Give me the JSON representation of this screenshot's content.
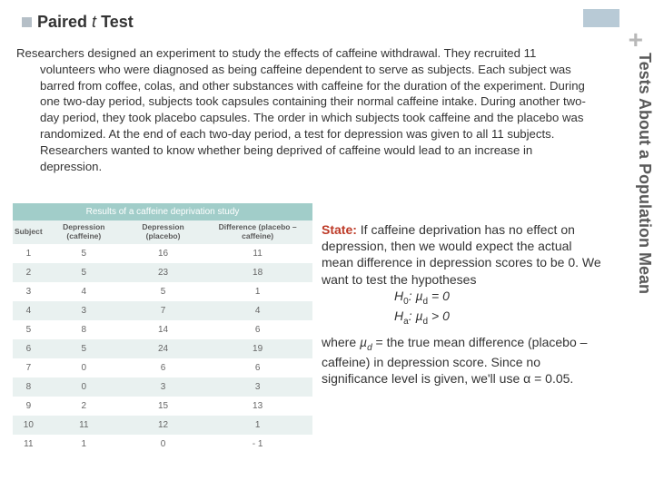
{
  "header": {
    "bold": "Paired",
    "italic": "t",
    "rest": "Test"
  },
  "corner": {
    "plus": "+",
    "block_color": "#b8cad6"
  },
  "sidebar": {
    "title": "Tests About a Population Mean"
  },
  "body": {
    "first": "Researchers designed an experiment to study the effects of caffeine withdrawal.",
    "rest": "They recruited 11 volunteers who were diagnosed as being caffeine dependent to serve as subjects. Each subject was barred from coffee, colas, and other substances with caffeine for the duration of the experiment. During one two-day period, subjects took capsules containing their normal caffeine intake. During another two-day period, they took placebo capsules. The order in which subjects took caffeine and the placebo was randomized. At the end of each two-day period, a test for depression was given to all 11 subjects. Researchers wanted to know whether being deprived of caffeine would lead to an increase in depression."
  },
  "table": {
    "title": "Results of a caffeine deprivation study",
    "columns": [
      "Subject",
      "Depression (caffeine)",
      "Depression (placebo)",
      "Difference (placebo – caffeine)"
    ],
    "rows": [
      [
        "1",
        "5",
        "16",
        "11"
      ],
      [
        "2",
        "5",
        "23",
        "18"
      ],
      [
        "3",
        "4",
        "5",
        "1"
      ],
      [
        "4",
        "3",
        "7",
        "4"
      ],
      [
        "5",
        "8",
        "14",
        "6"
      ],
      [
        "6",
        "5",
        "24",
        "19"
      ],
      [
        "7",
        "0",
        "6",
        "6"
      ],
      [
        "8",
        "0",
        "3",
        "3"
      ],
      [
        "9",
        "2",
        "15",
        "13"
      ],
      [
        "10",
        "11",
        "12",
        "1"
      ],
      [
        "11",
        "1",
        "0",
        "- 1"
      ]
    ],
    "header_bg": "#a1cdc9",
    "row_even_bg": "#e9f1f0"
  },
  "state": {
    "label": "State:",
    "text1": " If caffeine deprivation has no effect on depression, then we would expect the actual mean difference in depression scores to be 0. We want to test the hypotheses",
    "h0_pre": "H",
    "h0_sub": "0",
    "h0_post": ": µ",
    "h0_sub2": "d",
    "h0_end": " = 0",
    "ha_pre": "H",
    "ha_sub": "a",
    "ha_post": ": µ",
    "ha_sub2": "d",
    "ha_end": " > 0",
    "text2a": "where ",
    "mu": "µ",
    "mu_sub": "d",
    "text2b": " = the true mean difference (placebo – caffeine) in depression score.  Since no significance level is given, we'll use α = 0.05."
  }
}
